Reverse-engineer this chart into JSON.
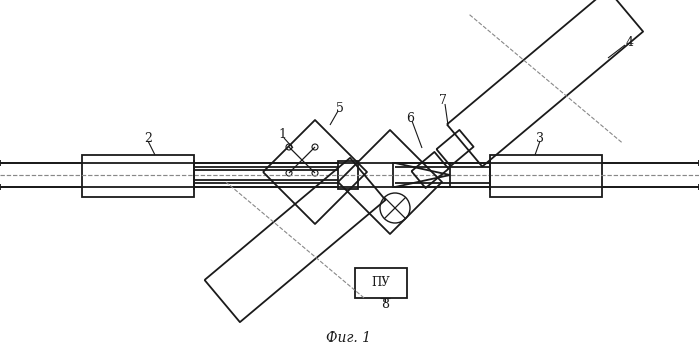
{
  "bg_color": "#ffffff",
  "line_color": "#1a1a1a",
  "dash_color": "#888888",
  "fig_label": "Фиг. 1",
  "lw": 1.3
}
